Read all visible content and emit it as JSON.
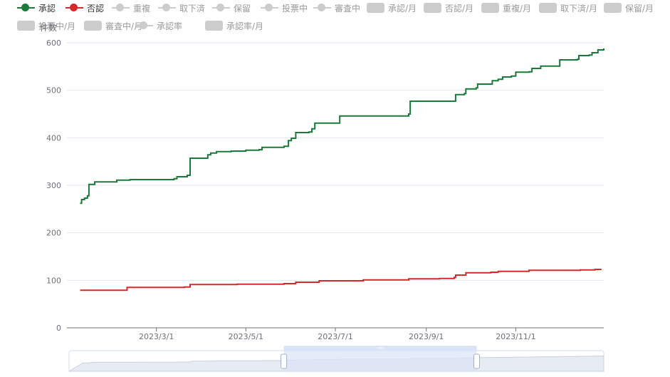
{
  "legend": [
    {
      "label": "承認",
      "type": "line",
      "active": true,
      "color": "#1a7a3a"
    },
    {
      "label": "否認",
      "type": "line",
      "active": true,
      "color": "#d42a2a"
    },
    {
      "label": "重複",
      "type": "line",
      "active": false
    },
    {
      "label": "取下済",
      "type": "line",
      "active": false
    },
    {
      "label": "保留",
      "type": "line",
      "active": false
    },
    {
      "label": "投票中",
      "type": "line",
      "active": false
    },
    {
      "label": "審査中",
      "type": "line",
      "active": false
    },
    {
      "label": "承認/月",
      "type": "bar",
      "active": false
    },
    {
      "label": "否認/月",
      "type": "bar",
      "active": false
    },
    {
      "label": "重複/月",
      "type": "bar",
      "active": false
    },
    {
      "label": "取下済/月",
      "type": "bar",
      "active": false
    },
    {
      "label": "保留/月",
      "type": "bar",
      "active": false
    },
    {
      "label": "投票中/月",
      "type": "bar",
      "active": false
    },
    {
      "label": "審査中/月",
      "type": "bar",
      "active": false
    },
    {
      "label": "承認率",
      "type": "line",
      "active": false
    },
    {
      "label": "承認率/月",
      "type": "bar",
      "active": false
    }
  ],
  "colors": {
    "approved": "#1a7a3a",
    "rejected": "#d42a2a",
    "inactive": "#cccccc",
    "axis": "#6e7079",
    "grid": "#e0e6f1",
    "zoom_fill": "#dbe4f7",
    "zoom_border": "#d2dbee"
  },
  "chart_data": {
    "type": "line",
    "ylabel": "件数",
    "ylim": [
      0,
      600
    ],
    "yticks": [
      0,
      100,
      200,
      300,
      400,
      500,
      600
    ],
    "xlim": [
      "2022-12-30",
      "2023-12-31"
    ],
    "xticks": [
      "2023/3/1",
      "2023/5/1",
      "2023/7/1",
      "2023/9/1",
      "2023/11/1"
    ],
    "grid": true,
    "legend_position": "top-left",
    "step": true,
    "series": [
      {
        "name": "承認",
        "color": "#1a7a3a",
        "points": [
          [
            "2023-01-08",
            262
          ],
          [
            "2023-01-09",
            270
          ],
          [
            "2023-01-11",
            273
          ],
          [
            "2023-01-13",
            278
          ],
          [
            "2023-01-14",
            302
          ],
          [
            "2023-01-18",
            307
          ],
          [
            "2023-01-28",
            307
          ],
          [
            "2023-02-02",
            311
          ],
          [
            "2023-02-11",
            312
          ],
          [
            "2023-03-13",
            314
          ],
          [
            "2023-03-15",
            318
          ],
          [
            "2023-03-22",
            321
          ],
          [
            "2023-03-24",
            357
          ],
          [
            "2023-04-04",
            357
          ],
          [
            "2023-04-05",
            364
          ],
          [
            "2023-04-07",
            368
          ],
          [
            "2023-04-11",
            371
          ],
          [
            "2023-04-21",
            372
          ],
          [
            "2023-05-01",
            374
          ],
          [
            "2023-05-10",
            375
          ],
          [
            "2023-05-12",
            380
          ],
          [
            "2023-05-20",
            380
          ],
          [
            "2023-05-27",
            382
          ],
          [
            "2023-05-30",
            394
          ],
          [
            "2023-06-01",
            399
          ],
          [
            "2023-06-04",
            411
          ],
          [
            "2023-06-13",
            412
          ],
          [
            "2023-06-15",
            419
          ],
          [
            "2023-06-17",
            431
          ],
          [
            "2023-06-26",
            431
          ],
          [
            "2023-07-03",
            431
          ],
          [
            "2023-07-04",
            446
          ],
          [
            "2023-08-20",
            450
          ],
          [
            "2023-08-21",
            477
          ],
          [
            "2023-09-20",
            477
          ],
          [
            "2023-09-21",
            491
          ],
          [
            "2023-09-27",
            493
          ],
          [
            "2023-09-28",
            503
          ],
          [
            "2023-10-05",
            505
          ],
          [
            "2023-10-06",
            513
          ],
          [
            "2023-10-15",
            513
          ],
          [
            "2023-10-16",
            520
          ],
          [
            "2023-10-20",
            523
          ],
          [
            "2023-10-23",
            528
          ],
          [
            "2023-10-29",
            530
          ],
          [
            "2023-11-01",
            538
          ],
          [
            "2023-11-10",
            539
          ],
          [
            "2023-11-12",
            546
          ],
          [
            "2023-11-18",
            551
          ],
          [
            "2023-11-30",
            551
          ],
          [
            "2023-12-01",
            564
          ],
          [
            "2023-12-13",
            565
          ],
          [
            "2023-12-14",
            573
          ],
          [
            "2023-12-21",
            574
          ],
          [
            "2023-12-23",
            579
          ],
          [
            "2023-12-27",
            585
          ],
          [
            "2023-12-31",
            588
          ]
        ]
      },
      {
        "name": "否認",
        "color": "#d42a2a",
        "points": [
          [
            "2023-01-08",
            79
          ],
          [
            "2023-01-15",
            79
          ],
          [
            "2023-02-09",
            85
          ],
          [
            "2023-03-20",
            86
          ],
          [
            "2023-03-23",
            86
          ],
          [
            "2023-03-24",
            91
          ],
          [
            "2023-04-08",
            91
          ],
          [
            "2023-04-25",
            92
          ],
          [
            "2023-05-27",
            93
          ],
          [
            "2023-06-01",
            93
          ],
          [
            "2023-06-04",
            96
          ],
          [
            "2023-06-20",
            99
          ],
          [
            "2023-07-20",
            101
          ],
          [
            "2023-08-20",
            103
          ],
          [
            "2023-09-10",
            104
          ],
          [
            "2023-09-20",
            106
          ],
          [
            "2023-09-21",
            111
          ],
          [
            "2023-09-27",
            111
          ],
          [
            "2023-09-28",
            116
          ],
          [
            "2023-10-15",
            117
          ],
          [
            "2023-10-20",
            119
          ],
          [
            "2023-11-10",
            121
          ],
          [
            "2023-11-30",
            121
          ],
          [
            "2023-12-15",
            122
          ],
          [
            "2023-12-25",
            123
          ],
          [
            "2023-12-29",
            124
          ]
        ]
      }
    ]
  },
  "datazoom": {
    "range_start": "2023-05-26",
    "range_end": "2023-10-05"
  }
}
